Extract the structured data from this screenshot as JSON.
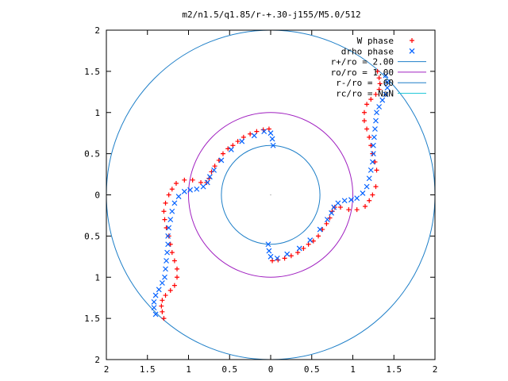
{
  "chart_data": {
    "type": "scatter",
    "title": "m2/n1.5/q1.85/r-+.30-j155/M5.0/512",
    "xlim": [
      -2,
      2
    ],
    "ylim": [
      -2,
      2
    ],
    "x_tick_values": [
      -2,
      -1.5,
      -1,
      -0.5,
      0,
      0.5,
      1,
      1.5,
      2
    ],
    "x_tick_labels": [
      "2",
      "1.5",
      "1",
      "0.5",
      "0",
      "0.5",
      "1",
      "1.5",
      "2"
    ],
    "y_tick_values": [
      2,
      1.5,
      1,
      0.5,
      0,
      -0.5,
      -1,
      -1.5,
      -2
    ],
    "y_tick_labels": [
      "2",
      "1.5",
      "1",
      "0.5",
      "0",
      "0.5",
      "1",
      "1.5",
      "2"
    ],
    "grid": false,
    "legend_position": "top-right",
    "series": [
      {
        "name": "W phase",
        "marker": "plus",
        "color": "#ff0000",
        "points": [
          [
            -1.3,
            -1.5
          ],
          [
            -1.32,
            -1.42
          ],
          [
            -1.33,
            -1.35
          ],
          [
            -1.32,
            -1.28
          ],
          [
            -1.28,
            -1.22
          ],
          [
            -1.22,
            -1.16
          ],
          [
            -1.17,
            -1.1
          ],
          [
            -1.14,
            -1.0
          ],
          [
            -1.14,
            -0.9
          ],
          [
            -1.17,
            -0.8
          ],
          [
            -1.2,
            -0.7
          ],
          [
            -1.22,
            -0.6
          ],
          [
            -1.24,
            -0.5
          ],
          [
            -1.27,
            -0.4
          ],
          [
            -1.29,
            -0.3
          ],
          [
            -1.3,
            -0.2
          ],
          [
            -1.28,
            -0.1
          ],
          [
            -1.24,
            0.0
          ],
          [
            -1.2,
            0.07
          ],
          [
            -1.15,
            0.14
          ],
          [
            -1.05,
            0.18
          ],
          [
            -0.95,
            0.18
          ],
          [
            -0.85,
            0.15
          ],
          [
            -0.78,
            0.15
          ],
          [
            -0.75,
            0.2
          ],
          [
            -0.72,
            0.28
          ],
          [
            -0.68,
            0.35
          ],
          [
            -0.63,
            0.42
          ],
          [
            -0.58,
            0.5
          ],
          [
            -0.52,
            0.56
          ],
          [
            -0.46,
            0.6
          ],
          [
            -0.4,
            0.65
          ],
          [
            -0.33,
            0.7
          ],
          [
            -0.25,
            0.74
          ],
          [
            -0.17,
            0.77
          ],
          [
            -0.09,
            0.79
          ],
          [
            -0.02,
            0.8
          ],
          [
            0.02,
            -0.8
          ],
          [
            0.09,
            -0.79
          ],
          [
            0.17,
            -0.77
          ],
          [
            0.25,
            -0.74
          ],
          [
            0.33,
            -0.7
          ],
          [
            0.4,
            -0.65
          ],
          [
            0.46,
            -0.6
          ],
          [
            0.52,
            -0.56
          ],
          [
            0.58,
            -0.5
          ],
          [
            0.63,
            -0.42
          ],
          [
            0.68,
            -0.35
          ],
          [
            0.72,
            -0.28
          ],
          [
            0.75,
            -0.2
          ],
          [
            0.78,
            -0.15
          ],
          [
            0.85,
            -0.15
          ],
          [
            0.95,
            -0.18
          ],
          [
            1.05,
            -0.18
          ],
          [
            1.15,
            -0.14
          ],
          [
            1.2,
            -0.07
          ],
          [
            1.24,
            0.0
          ],
          [
            1.28,
            0.1
          ],
          [
            1.29,
            0.3
          ],
          [
            1.27,
            0.4
          ],
          [
            1.24,
            0.5
          ],
          [
            1.22,
            0.6
          ],
          [
            1.2,
            0.7
          ],
          [
            1.17,
            0.8
          ],
          [
            1.14,
            0.9
          ],
          [
            1.14,
            1.0
          ],
          [
            1.17,
            1.1
          ],
          [
            1.22,
            1.16
          ],
          [
            1.28,
            1.22
          ],
          [
            1.32,
            1.28
          ],
          [
            1.33,
            1.35
          ],
          [
            1.32,
            1.42
          ],
          [
            1.3,
            1.5
          ]
        ]
      },
      {
        "name": "drho phase",
        "marker": "x",
        "color": "#0060ff",
        "points": [
          [
            -1.4,
            -1.45
          ],
          [
            -1.42,
            -1.37
          ],
          [
            -1.42,
            -1.3
          ],
          [
            -1.4,
            -1.22
          ],
          [
            -1.36,
            -1.15
          ],
          [
            -1.32,
            -1.07
          ],
          [
            -1.29,
            -1.0
          ],
          [
            -1.28,
            -0.9
          ],
          [
            -1.27,
            -0.8
          ],
          [
            -1.26,
            -0.7
          ],
          [
            -1.25,
            -0.6
          ],
          [
            -1.25,
            -0.5
          ],
          [
            -1.24,
            -0.4
          ],
          [
            -1.22,
            -0.3
          ],
          [
            -1.2,
            -0.2
          ],
          [
            -1.17,
            -0.1
          ],
          [
            -1.12,
            -0.02
          ],
          [
            -1.05,
            0.04
          ],
          [
            -0.98,
            0.06
          ],
          [
            -0.9,
            0.07
          ],
          [
            -0.82,
            0.1
          ],
          [
            -0.77,
            0.15
          ],
          [
            -0.74,
            0.22
          ],
          [
            -0.69,
            0.3
          ],
          [
            -0.6,
            0.42
          ],
          [
            -0.48,
            0.55
          ],
          [
            -0.35,
            0.65
          ],
          [
            -0.2,
            0.72
          ],
          [
            -0.08,
            0.77
          ],
          [
            0.0,
            0.75
          ],
          [
            0.02,
            0.68
          ],
          [
            0.03,
            0.6
          ],
          [
            -0.03,
            -0.6
          ],
          [
            -0.02,
            -0.68
          ],
          [
            0.0,
            -0.75
          ],
          [
            0.08,
            -0.77
          ],
          [
            0.2,
            -0.72
          ],
          [
            0.35,
            -0.65
          ],
          [
            0.48,
            -0.55
          ],
          [
            0.6,
            -0.42
          ],
          [
            0.69,
            -0.3
          ],
          [
            0.74,
            -0.22
          ],
          [
            0.77,
            -0.15
          ],
          [
            0.82,
            -0.1
          ],
          [
            0.9,
            -0.07
          ],
          [
            0.98,
            -0.06
          ],
          [
            1.05,
            -0.04
          ],
          [
            1.12,
            0.02
          ],
          [
            1.17,
            0.1
          ],
          [
            1.2,
            0.2
          ],
          [
            1.22,
            0.3
          ],
          [
            1.24,
            0.4
          ],
          [
            1.25,
            0.5
          ],
          [
            1.25,
            0.6
          ],
          [
            1.26,
            0.7
          ],
          [
            1.27,
            0.8
          ],
          [
            1.28,
            0.9
          ],
          [
            1.29,
            1.0
          ],
          [
            1.32,
            1.07
          ],
          [
            1.36,
            1.15
          ],
          [
            1.4,
            1.22
          ],
          [
            1.42,
            1.3
          ],
          [
            1.42,
            1.37
          ],
          [
            1.4,
            1.45
          ]
        ]
      }
    ],
    "circles": [
      {
        "name": "r+/ro = 2.00",
        "radius": 2.0,
        "color": "#1e7fc8"
      },
      {
        "name": "ro/ro = 1.00",
        "radius": 1.0,
        "color": "#a020c0"
      },
      {
        "name": "r-/ro = .60",
        "radius": 0.6,
        "color": "#1e7fc8"
      },
      {
        "name": "rc/ro = NaN",
        "radius": null,
        "color": "#22c8d8"
      }
    ]
  }
}
